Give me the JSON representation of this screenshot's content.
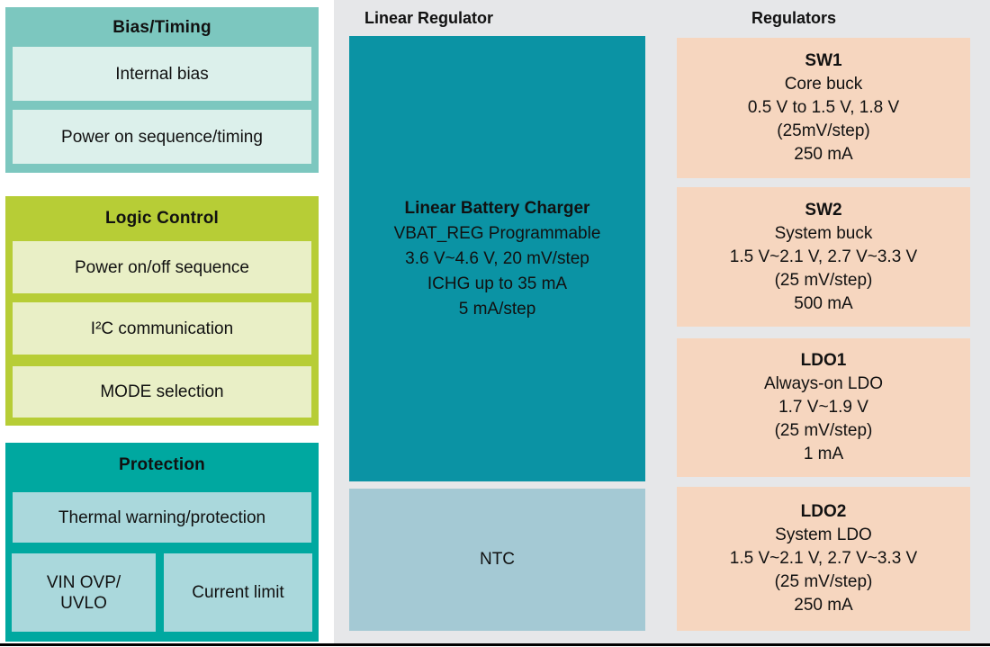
{
  "colors": {
    "bias_block": "#7cc7bf",
    "bias_item": "#dcf0eb",
    "logic_block": "#b7cd36",
    "logic_item": "#e9efc6",
    "protection_block": "#00a8a0",
    "protection_item": "#aad8dc",
    "charger_box": "#0b93a4",
    "ntc_box": "#a4c9d4",
    "regulator_box": "#f6d6bf",
    "panel_background": "#e6e7e9",
    "bottom_bar": "#000000",
    "text": "#111111"
  },
  "bias_timing": {
    "title": "Bias/Timing",
    "items": [
      "Internal bias",
      "Power on sequence/timing"
    ]
  },
  "logic_control": {
    "title": "Logic Control",
    "items": [
      "Power on/off sequence",
      "I²C communication",
      "MODE selection"
    ]
  },
  "protection": {
    "title": "Protection",
    "thermal": "Thermal warning/protection",
    "vin_ovp_uvlo": "VIN OVP/\nUVLO",
    "current_limit": "Current limit"
  },
  "linear_regulator": {
    "section_title": "Linear Regulator",
    "charger": {
      "title": "Linear Battery Charger",
      "lines": [
        "VBAT_REG Programmable",
        "3.6 V~4.6 V, 20 mV/step",
        "ICHG up to 35 mA",
        "5 mA/step"
      ]
    },
    "ntc": "NTC"
  },
  "regulators": {
    "section_title": "Regulators",
    "boxes": [
      {
        "name": "SW1",
        "lines": [
          "Core buck",
          "0.5 V to 1.5 V, 1.8 V",
          "(25mV/step)",
          "250 mA"
        ]
      },
      {
        "name": "SW2",
        "lines": [
          "System buck",
          "1.5 V~2.1 V, 2.7 V~3.3 V",
          "(25 mV/step)",
          "500 mA"
        ]
      },
      {
        "name": "LDO1",
        "lines": [
          "Always-on LDO",
          "1.7 V~1.9 V",
          "(25 mV/step)",
          "1 mA"
        ]
      },
      {
        "name": "LDO2",
        "lines": [
          "System LDO",
          "1.5 V~2.1 V, 2.7 V~3.3 V",
          "(25 mV/step)",
          "250 mA"
        ]
      }
    ]
  }
}
